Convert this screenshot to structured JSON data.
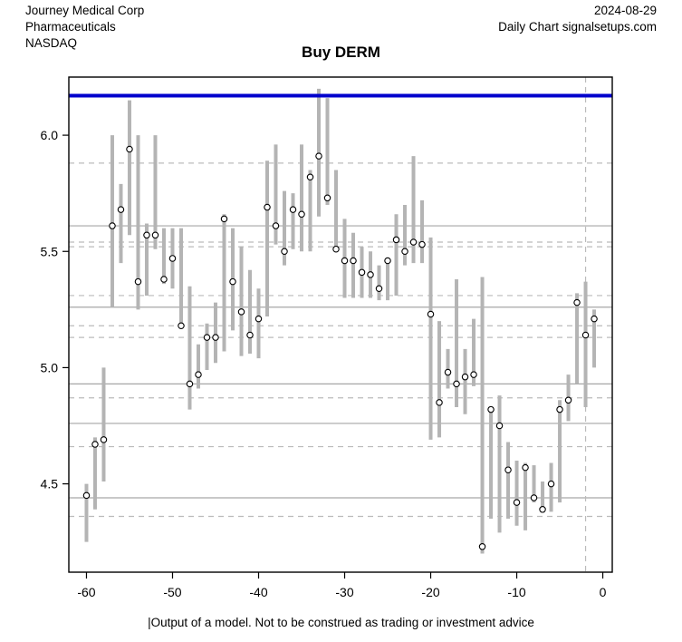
{
  "header": {
    "company_line1": "Journey Medical Corp",
    "company_line2": "Pharmaceuticals",
    "exchange": "NASDAQ",
    "date": "2024-08-29",
    "source": "Daily Chart signalsetups.com"
  },
  "title": "Buy DERM",
  "footer": "|Output of a model. Not to be construed as trading or investment advice",
  "colors": {
    "bar": "#b4b4b4",
    "point_fill": "#ffffff",
    "point_stroke": "#000000",
    "grid_solid": "#a6a6a6",
    "grid_dashed": "#bbbbbb",
    "signal": "#0000cc",
    "border": "#000000",
    "background": "#ffffff"
  },
  "chart_data": {
    "type": "scatter",
    "description": "Daily high-low price range bars (gray) with open-circle model value markers; horizontal support/resistance gridlines; blue buy-signal level line; dashed vertical line at day -2.",
    "title": "Buy DERM",
    "xlabel": "",
    "ylabel": "",
    "xlim": [
      -62.05,
      1.1
    ],
    "ylim": [
      4.12,
      6.25
    ],
    "x_ticks": [
      -60,
      -50,
      -40,
      -30,
      -20,
      -10,
      0
    ],
    "x_tick_labels": [
      "-60",
      "-50",
      "-40",
      "-30",
      "-20",
      "-10",
      "0"
    ],
    "y_ticks": [
      4.5,
      5.0,
      5.5,
      6.0
    ],
    "y_tick_labels": [
      "4.5",
      "5.0",
      "5.5",
      "6.0"
    ],
    "grid": true,
    "legend": "none",
    "signal_line": {
      "value": 6.17,
      "style": "solid",
      "width": 4
    },
    "vline": {
      "x": -2,
      "style": "dashed"
    },
    "hlines_solid": [
      5.61,
      5.26,
      4.93,
      4.76,
      4.44
    ],
    "hlines_dashed": [
      5.88,
      5.54,
      5.52,
      5.31,
      5.18,
      5.13,
      4.87,
      4.66,
      4.36
    ],
    "series": [
      {
        "name": "daily-range-with-model-point",
        "points": [
          {
            "x": -60,
            "low": 4.25,
            "high": 4.5,
            "value": 4.45
          },
          {
            "x": -59,
            "low": 4.39,
            "high": 4.7,
            "value": 4.67
          },
          {
            "x": -58,
            "low": 4.51,
            "high": 5.0,
            "value": 4.69
          },
          {
            "x": -57,
            "low": 5.26,
            "high": 6.0,
            "value": 5.61
          },
          {
            "x": -56,
            "low": 5.45,
            "high": 5.79,
            "value": 5.68
          },
          {
            "x": -55,
            "low": 5.57,
            "high": 6.15,
            "value": 5.94
          },
          {
            "x": -54,
            "low": 5.25,
            "high": 6.0,
            "value": 5.37
          },
          {
            "x": -53,
            "low": 5.31,
            "high": 5.62,
            "value": 5.57
          },
          {
            "x": -52,
            "low": 5.51,
            "high": 6.0,
            "value": 5.57
          },
          {
            "x": -51,
            "low": 5.36,
            "high": 5.6,
            "value": 5.38
          },
          {
            "x": -50,
            "low": 5.34,
            "high": 5.6,
            "value": 5.47
          },
          {
            "x": -49,
            "low": 5.17,
            "high": 5.6,
            "value": 5.18
          },
          {
            "x": -48,
            "low": 4.82,
            "high": 5.35,
            "value": 4.93
          },
          {
            "x": -47,
            "low": 4.91,
            "high": 5.1,
            "value": 4.97
          },
          {
            "x": -46,
            "low": 4.99,
            "high": 5.19,
            "value": 5.13
          },
          {
            "x": -45,
            "low": 5.02,
            "high": 5.28,
            "value": 5.13
          },
          {
            "x": -44,
            "low": 5.07,
            "high": 5.66,
            "value": 5.64
          },
          {
            "x": -43,
            "low": 5.16,
            "high": 5.6,
            "value": 5.37
          },
          {
            "x": -42,
            "low": 5.05,
            "high": 5.52,
            "value": 5.24
          },
          {
            "x": -41,
            "low": 5.06,
            "high": 5.42,
            "value": 5.14
          },
          {
            "x": -40,
            "low": 5.04,
            "high": 5.34,
            "value": 5.21
          },
          {
            "x": -39,
            "low": 5.22,
            "high": 5.89,
            "value": 5.69
          },
          {
            "x": -38,
            "low": 5.53,
            "high": 5.96,
            "value": 5.61
          },
          {
            "x": -37,
            "low": 5.44,
            "high": 5.76,
            "value": 5.5
          },
          {
            "x": -36,
            "low": 5.51,
            "high": 5.75,
            "value": 5.68
          },
          {
            "x": -35,
            "low": 5.5,
            "high": 5.96,
            "value": 5.66
          },
          {
            "x": -34,
            "low": 5.5,
            "high": 5.85,
            "value": 5.82
          },
          {
            "x": -33,
            "low": 5.65,
            "high": 6.2,
            "value": 5.91
          },
          {
            "x": -32,
            "low": 5.7,
            "high": 6.16,
            "value": 5.73
          },
          {
            "x": -31,
            "low": 5.51,
            "high": 5.85,
            "value": 5.51
          },
          {
            "x": -30,
            "low": 5.3,
            "high": 5.64,
            "value": 5.46
          },
          {
            "x": -29,
            "low": 5.3,
            "high": 5.58,
            "value": 5.46
          },
          {
            "x": -28,
            "low": 5.3,
            "high": 5.52,
            "value": 5.41
          },
          {
            "x": -27,
            "low": 5.3,
            "high": 5.5,
            "value": 5.4
          },
          {
            "x": -26,
            "low": 5.29,
            "high": 5.44,
            "value": 5.34
          },
          {
            "x": -25,
            "low": 5.29,
            "high": 5.47,
            "value": 5.46
          },
          {
            "x": -24,
            "low": 5.31,
            "high": 5.66,
            "value": 5.55
          },
          {
            "x": -23,
            "low": 5.44,
            "high": 5.7,
            "value": 5.5
          },
          {
            "x": -22,
            "low": 5.45,
            "high": 5.91,
            "value": 5.54
          },
          {
            "x": -21,
            "low": 5.45,
            "high": 5.72,
            "value": 5.53
          },
          {
            "x": -20,
            "low": 4.69,
            "high": 5.56,
            "value": 5.23
          },
          {
            "x": -19,
            "low": 4.7,
            "high": 5.2,
            "value": 4.85
          },
          {
            "x": -18,
            "low": 4.91,
            "high": 5.08,
            "value": 4.98
          },
          {
            "x": -17,
            "low": 4.83,
            "high": 5.38,
            "value": 4.93
          },
          {
            "x": -16,
            "low": 4.8,
            "high": 5.08,
            "value": 4.96
          },
          {
            "x": -15,
            "low": 4.92,
            "high": 5.21,
            "value": 4.97
          },
          {
            "x": -14,
            "low": 4.2,
            "high": 5.39,
            "value": 4.23
          },
          {
            "x": -13,
            "low": 4.35,
            "high": 4.83,
            "value": 4.82
          },
          {
            "x": -12,
            "low": 4.29,
            "high": 4.88,
            "value": 4.75
          },
          {
            "x": -11,
            "low": 4.35,
            "high": 4.68,
            "value": 4.56
          },
          {
            "x": -10,
            "low": 4.32,
            "high": 4.6,
            "value": 4.42
          },
          {
            "x": -9,
            "low": 4.3,
            "high": 4.59,
            "value": 4.57
          },
          {
            "x": -8,
            "low": 4.42,
            "high": 4.58,
            "value": 4.44
          },
          {
            "x": -7,
            "low": 4.38,
            "high": 4.51,
            "value": 4.39
          },
          {
            "x": -6,
            "low": 4.38,
            "high": 4.59,
            "value": 4.5
          },
          {
            "x": -5,
            "low": 4.42,
            "high": 4.86,
            "value": 4.82
          },
          {
            "x": -4,
            "low": 4.77,
            "high": 4.97,
            "value": 4.86
          },
          {
            "x": -3,
            "low": 4.93,
            "high": 5.32,
            "value": 5.28
          },
          {
            "x": -2,
            "low": 4.83,
            "high": 5.37,
            "value": 5.14
          },
          {
            "x": -1,
            "low": 5.0,
            "high": 5.25,
            "value": 5.21
          }
        ]
      }
    ]
  }
}
